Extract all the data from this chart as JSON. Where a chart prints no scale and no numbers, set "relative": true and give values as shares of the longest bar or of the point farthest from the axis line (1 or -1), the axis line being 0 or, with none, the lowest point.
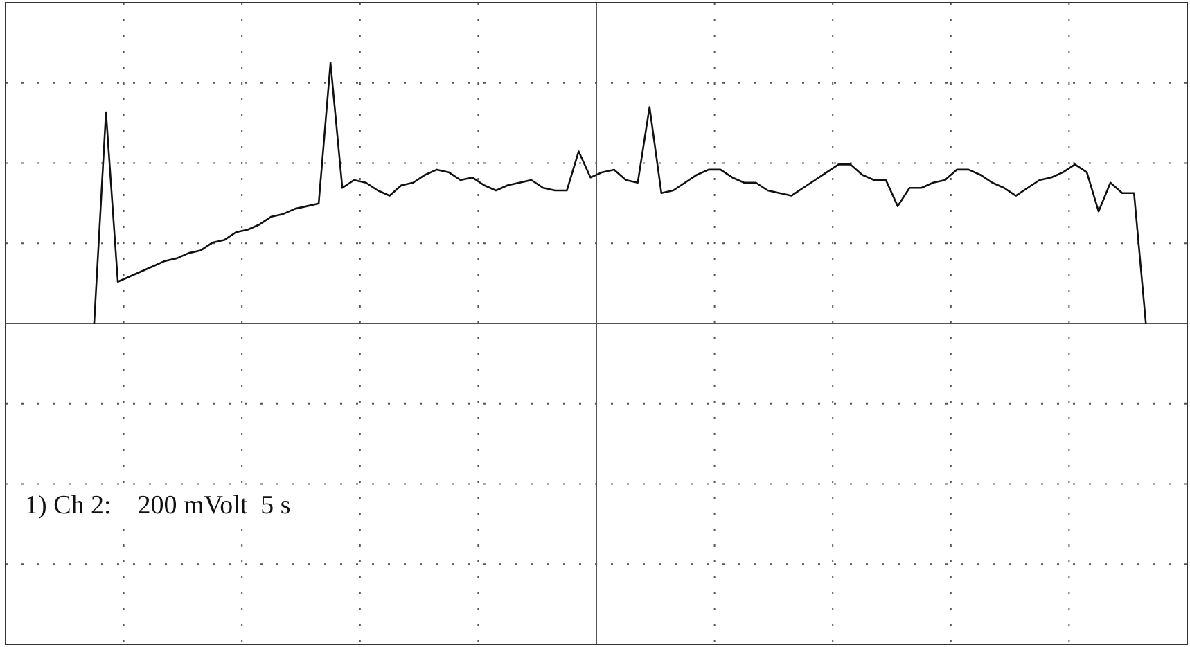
{
  "chart_data": {
    "type": "line",
    "relative": true,
    "grid": true,
    "legend": false,
    "categories": [
      null,
      null,
      null,
      null,
      null,
      null,
      null,
      null,
      null,
      null,
      null,
      null,
      null,
      null,
      null,
      null,
      null,
      null,
      null,
      null,
      null,
      null,
      null,
      null,
      null,
      null,
      null,
      null,
      null,
      null,
      null,
      null,
      null,
      null,
      null,
      null,
      null,
      null,
      null,
      null,
      null,
      null,
      null,
      null,
      null,
      null,
      null,
      null,
      null,
      null,
      null,
      null,
      null,
      null,
      null,
      null,
      null,
      null,
      null,
      null,
      null,
      null,
      null,
      null,
      null,
      null,
      null,
      null,
      null,
      null,
      null,
      null,
      null,
      null,
      null,
      null,
      null,
      null,
      null,
      null,
      null,
      null,
      null,
      null,
      null,
      null,
      null,
      null,
      null,
      null,
      null,
      null,
      null,
      null,
      null,
      null,
      null,
      null,
      null,
      null
    ],
    "series": [
      {
        "color": "#111111",
        "values": [
          null,
          null,
          null,
          null,
          null,
          null,
          null,
          0,
          0.81,
          0.16,
          0.18,
          0.2,
          0.22,
          0.24,
          0.25,
          0.27,
          0.28,
          0.31,
          0.32,
          0.35,
          0.36,
          0.38,
          0.41,
          0.42,
          0.44,
          0.45,
          0.46,
          1,
          0.52,
          0.55,
          0.54,
          0.51,
          0.49,
          0.53,
          0.54,
          0.57,
          0.59,
          0.58,
          0.55,
          0.56,
          0.53,
          0.51,
          0.53,
          0.54,
          0.55,
          0.52,
          0.51,
          0.51,
          0.66,
          0.56,
          0.58,
          0.59,
          0.55,
          0.54,
          0.83,
          0.5,
          0.51,
          0.54,
          0.57,
          0.59,
          0.59,
          0.56,
          0.54,
          0.54,
          0.51,
          0.5,
          0.49,
          0.52,
          0.55,
          0.58,
          0.61,
          0.61,
          0.57,
          0.55,
          0.55,
          0.45,
          0.52,
          0.52,
          0.54,
          0.55,
          0.59,
          0.59,
          0.57,
          0.54,
          0.52,
          0.49,
          0.52,
          0.55,
          0.56,
          0.58,
          0.61,
          0.58,
          0.43,
          0.54,
          0.5,
          0.5,
          0,
          null,
          null,
          null
        ]
      }
    ],
    "annotations": [
      "1) Ch 2:    200 mVolt  5 s"
    ]
  }
}
